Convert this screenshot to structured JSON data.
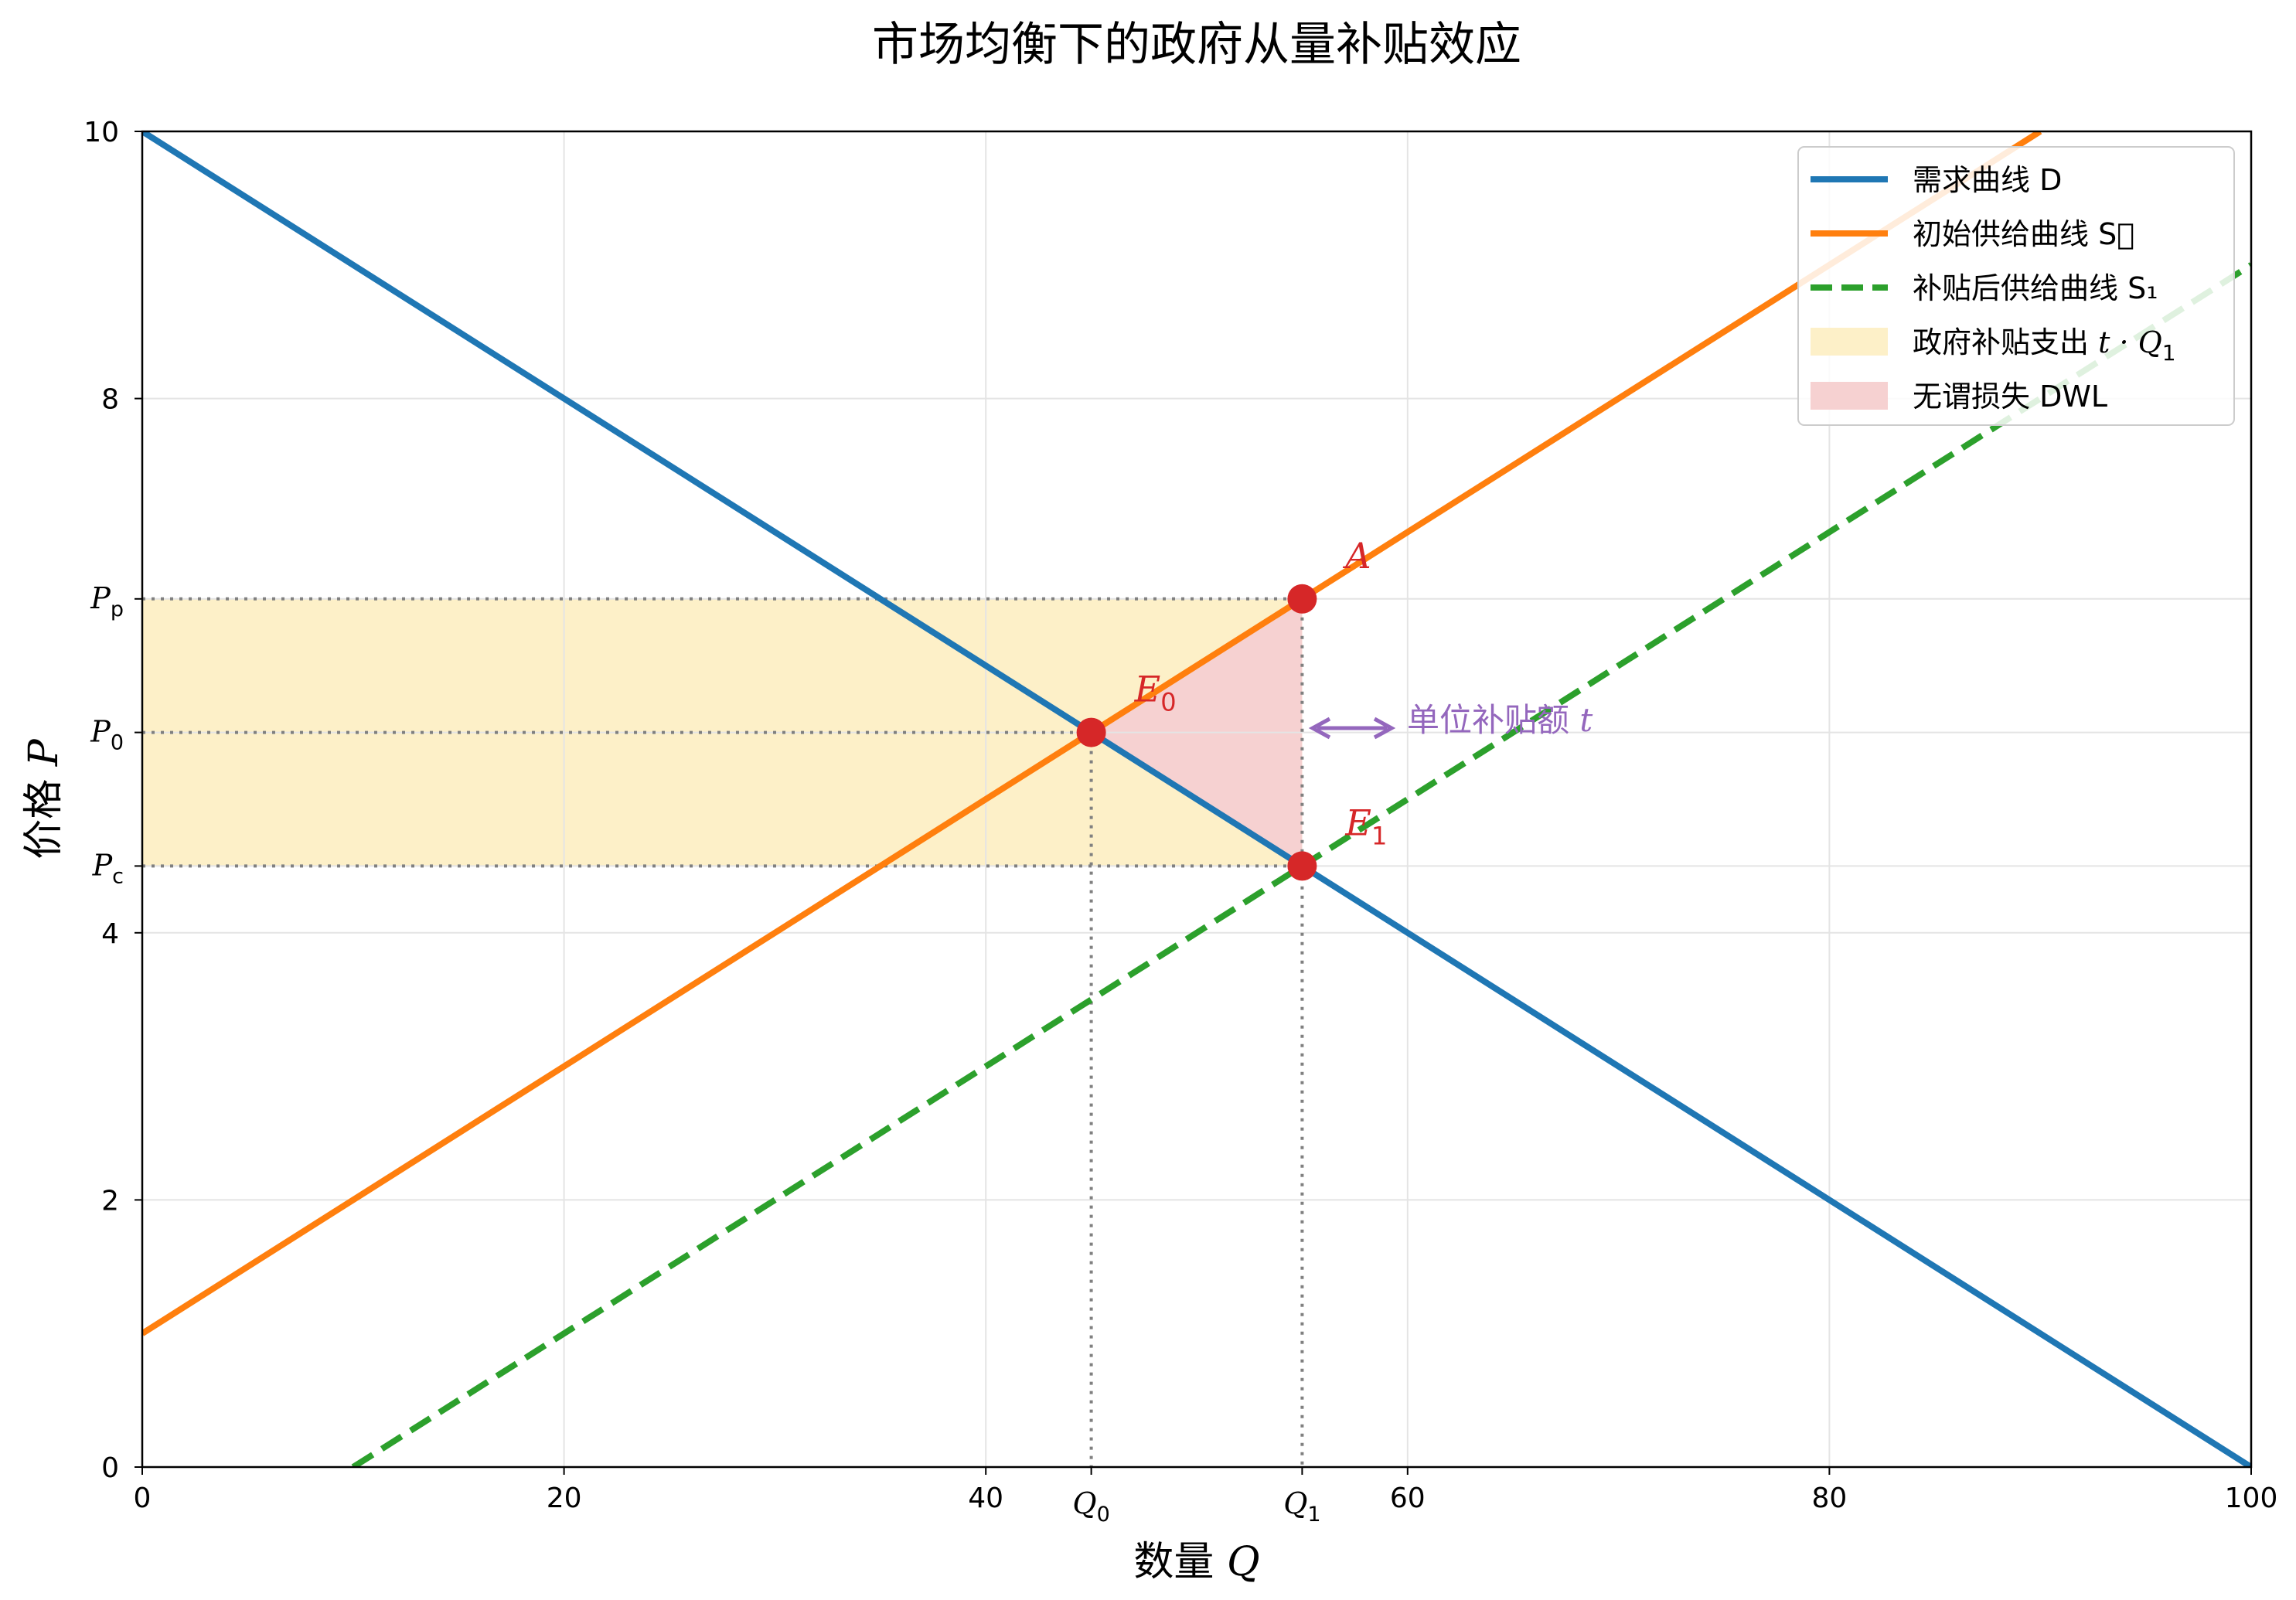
{
  "chart_data": {
    "type": "line",
    "title": "市场均衡下的政府从量补贴效应",
    "xlabel": "数量 ",
    "xlabel_var": "Q",
    "ylabel": "价格 ",
    "ylabel_var": "P",
    "xlim": [
      0,
      100
    ],
    "ylim": [
      0,
      10
    ],
    "x_ticks": [
      0,
      20,
      40,
      60,
      80,
      100
    ],
    "y_ticks": [
      0,
      2,
      4,
      8,
      10
    ],
    "x_special_ticks": [
      {
        "value": 45,
        "var": "Q",
        "sub": "0"
      },
      {
        "value": 55,
        "var": "Q",
        "sub": "1"
      }
    ],
    "y_special_ticks": [
      {
        "value": 6.5,
        "var": "P",
        "sub": "p"
      },
      {
        "value": 5.5,
        "var": "P",
        "sub": "0"
      },
      {
        "value": 4.5,
        "var": "P",
        "sub": "c"
      }
    ],
    "grid": true,
    "legend_position": "top-right",
    "series": [
      {
        "name": "需求曲线 D",
        "color": "#1f77b4",
        "style": "solid",
        "x": [
          0,
          100
        ],
        "y": [
          10,
          0
        ]
      },
      {
        "name": "初始供给曲线 S\u0000",
        "color": "#ff7f0e",
        "style": "solid",
        "x": [
          0,
          90
        ],
        "y": [
          1,
          10
        ]
      },
      {
        "name": "补贴后供给曲线 S₁",
        "color": "#2ca02c",
        "style": "dashed",
        "x": [
          10,
          100
        ],
        "y": [
          0,
          9
        ]
      }
    ],
    "areas": [
      {
        "name": "政府补贴支出 ",
        "name_math": "t · Q",
        "name_sub": "1",
        "color": "#fdf0c8",
        "x_range": [
          0,
          55
        ],
        "y_range": [
          4.5,
          6.5
        ]
      },
      {
        "name": "无谓损失 DWL",
        "color": "#f6d1d1",
        "polygon": [
          [
            45,
            5.5
          ],
          [
            55,
            6.5
          ],
          [
            55,
            4.5
          ]
        ]
      }
    ],
    "points": [
      {
        "label": "E",
        "sub": "0",
        "x": 45,
        "y": 5.5
      },
      {
        "label": "A",
        "sub": "",
        "x": 55,
        "y": 6.5
      },
      {
        "label": "E",
        "sub": "1",
        "x": 55,
        "y": 4.5
      }
    ],
    "annotation": {
      "text": "单位补贴额 ",
      "var": "t",
      "color": "#9467bd",
      "x": 55,
      "y": 5.5
    },
    "point_color": "#d62728"
  }
}
